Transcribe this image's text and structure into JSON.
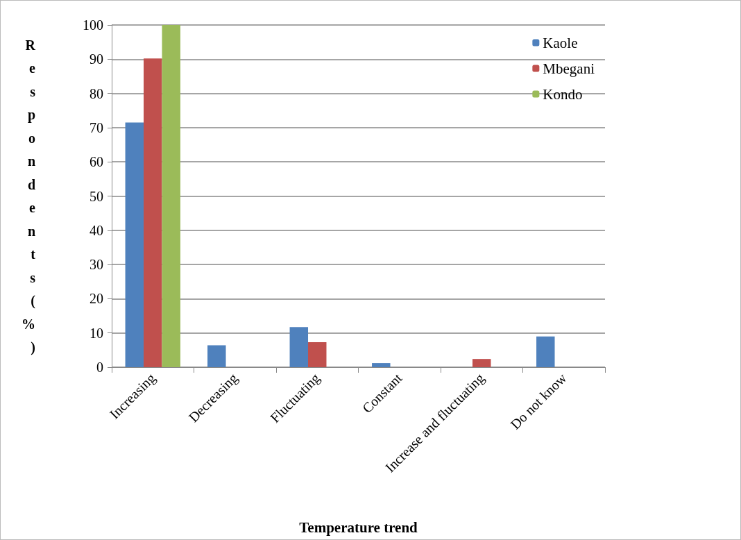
{
  "chart_data": {
    "type": "bar",
    "xlabel": "Temperature trend",
    "ylabel": "Respondents (%)",
    "categories": [
      "Increasing",
      "Decreasing",
      "Fluctuating",
      "Constant",
      "Increase and fluctuating",
      "Do not know"
    ],
    "series": [
      {
        "name": "Kaole",
        "color": "#4f81bd",
        "values": [
          71.5,
          6.4,
          11.7,
          1.2,
          0,
          9.0
        ]
      },
      {
        "name": "Mbegani",
        "color": "#c0504d",
        "values": [
          90.2,
          0,
          7.3,
          0,
          2.4,
          0
        ]
      },
      {
        "name": "Kondo",
        "color": "#9bbb59",
        "values": [
          100,
          0,
          0,
          0,
          0,
          0
        ]
      }
    ],
    "ylim": [
      0,
      100
    ],
    "yticks": [
      0,
      10,
      20,
      30,
      40,
      50,
      60,
      70,
      80,
      90,
      100
    ],
    "grid": "y",
    "legend": "top right"
  }
}
